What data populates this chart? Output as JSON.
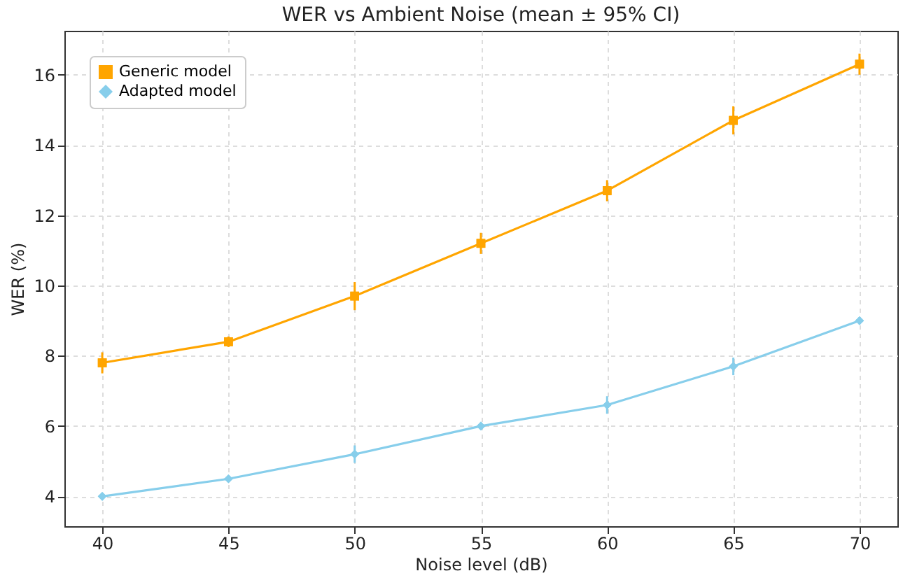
{
  "chart_data": {
    "type": "line",
    "title": "WER vs Ambient Noise (mean ± 95% CI)",
    "xlabel": "Noise level (dB)",
    "ylabel": "WER (%)",
    "x": [
      40,
      45,
      50,
      55,
      60,
      65,
      70
    ],
    "series": [
      {
        "name": "Generic model",
        "color": "#ffa500",
        "marker": "square",
        "values": [
          7.8,
          8.4,
          9.7,
          11.2,
          12.7,
          14.7,
          16.3
        ],
        "errors": [
          0.3,
          0.15,
          0.4,
          0.3,
          0.3,
          0.4,
          0.3
        ]
      },
      {
        "name": "Adapted model",
        "color": "#87ceeb",
        "marker": "diamond",
        "values": [
          4.0,
          4.5,
          5.2,
          6.0,
          6.6,
          7.7,
          9.0
        ],
        "errors": [
          0.1,
          0.1,
          0.25,
          0.1,
          0.25,
          0.25,
          0.1
        ]
      }
    ],
    "xlim": [
      38.5,
      71.5
    ],
    "xticks": [
      40,
      45,
      50,
      55,
      60,
      65,
      70
    ],
    "ylim": [
      3.15,
      17.25
    ],
    "yticks": [
      4,
      6,
      8,
      10,
      12,
      14,
      16
    ],
    "grid": true,
    "legend": "top left",
    "line_style": "solid"
  }
}
